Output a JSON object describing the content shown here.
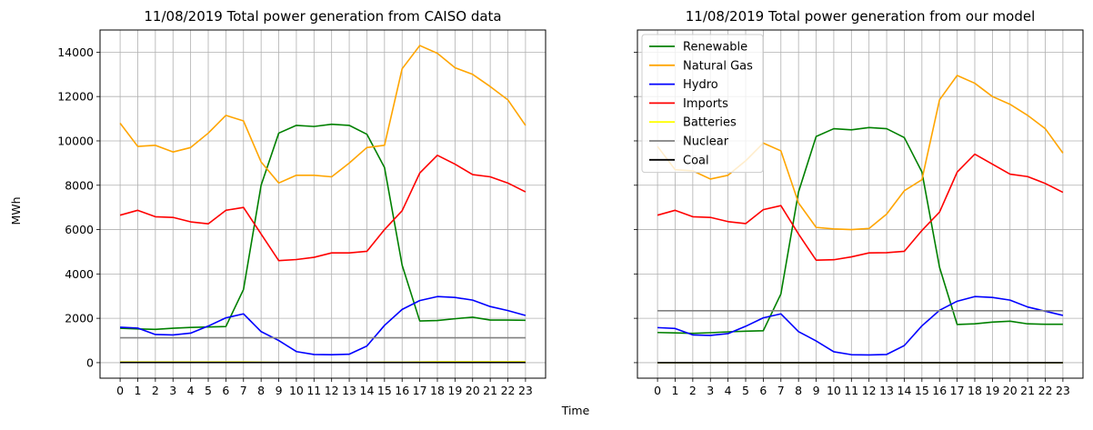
{
  "figure": {
    "xlabel": "Time",
    "ylabel": "MWh"
  },
  "chart_data": [
    {
      "type": "line",
      "title": "11/08/2019 Total power generation from CAISO data",
      "x": [
        0,
        1,
        2,
        3,
        4,
        5,
        6,
        7,
        8,
        9,
        10,
        11,
        12,
        13,
        14,
        15,
        16,
        17,
        18,
        19,
        20,
        21,
        22,
        23
      ],
      "ylim": [
        -700,
        15000
      ],
      "yticks": [
        0,
        2000,
        4000,
        6000,
        8000,
        10000,
        12000,
        14000
      ],
      "grid": true,
      "legend": false,
      "series": [
        {
          "name": "Renewable",
          "color": "#008000",
          "values": [
            1550,
            1520,
            1500,
            1550,
            1590,
            1610,
            1630,
            3300,
            8000,
            10350,
            10700,
            10650,
            10750,
            10700,
            10300,
            8800,
            4400,
            1880,
            1900,
            1980,
            2050,
            1920,
            1920,
            1910
          ]
        },
        {
          "name": "Natural Gas",
          "color": "#ffa500",
          "values": [
            10800,
            9750,
            9800,
            9500,
            9700,
            10350,
            11150,
            10900,
            9050,
            8100,
            8450,
            8450,
            8380,
            9000,
            9700,
            9800,
            13250,
            14300,
            13950,
            13300,
            13000,
            12450,
            11850,
            10700
          ]
        },
        {
          "name": "Hydro",
          "color": "#0000ff",
          "values": [
            1600,
            1560,
            1270,
            1250,
            1330,
            1650,
            2020,
            2200,
            1400,
            1000,
            500,
            370,
            360,
            380,
            750,
            1680,
            2400,
            2800,
            2980,
            2940,
            2820,
            2530,
            2350,
            2130
          ]
        },
        {
          "name": "Imports",
          "color": "#ff0000",
          "values": [
            6650,
            6870,
            6580,
            6550,
            6350,
            6260,
            6870,
            7000,
            5800,
            4600,
            4650,
            4750,
            4950,
            4950,
            5020,
            6000,
            6850,
            8550,
            9350,
            8950,
            8480,
            8380,
            8100,
            7700
          ]
        },
        {
          "name": "Batteries",
          "color": "#ffff00",
          "values": [
            30,
            30,
            30,
            30,
            30,
            30,
            30,
            30,
            20,
            10,
            10,
            10,
            10,
            10,
            10,
            20,
            20,
            30,
            40,
            40,
            40,
            40,
            40,
            40
          ]
        },
        {
          "name": "Nuclear",
          "color": "#808080",
          "values": [
            1120,
            1120,
            1120,
            1120,
            1120,
            1120,
            1120,
            1120,
            1120,
            1120,
            1120,
            1120,
            1120,
            1120,
            1120,
            1120,
            1120,
            1120,
            1120,
            1120,
            1120,
            1120,
            1120,
            1120
          ]
        },
        {
          "name": "Coal",
          "color": "#000000",
          "values": [
            10,
            10,
            10,
            10,
            10,
            10,
            10,
            10,
            10,
            10,
            10,
            10,
            10,
            10,
            10,
            10,
            10,
            10,
            10,
            10,
            10,
            10,
            10,
            10
          ]
        }
      ]
    },
    {
      "type": "line",
      "title": "11/08/2019 Total power generation from our model",
      "x": [
        0,
        1,
        2,
        3,
        4,
        5,
        6,
        7,
        8,
        9,
        10,
        11,
        12,
        13,
        14,
        15,
        16,
        17,
        18,
        19,
        20,
        21,
        22,
        23
      ],
      "ylim": [
        -700,
        15000
      ],
      "yticks": [
        0,
        2000,
        4000,
        6000,
        8000,
        10000,
        12000,
        14000
      ],
      "grid": true,
      "legend": "top-left",
      "series": [
        {
          "name": "Renewable",
          "color": "#008000",
          "values": [
            1360,
            1340,
            1320,
            1350,
            1390,
            1420,
            1440,
            3100,
            7700,
            10200,
            10550,
            10500,
            10600,
            10550,
            10150,
            8600,
            4300,
            1720,
            1750,
            1830,
            1870,
            1750,
            1730,
            1730
          ]
        },
        {
          "name": "Natural Gas",
          "color": "#ffa500",
          "values": [
            9750,
            8700,
            8650,
            8280,
            8450,
            9100,
            9900,
            9550,
            7200,
            6100,
            6030,
            6000,
            6050,
            6700,
            7750,
            8250,
            11850,
            12950,
            12600,
            12000,
            11650,
            11150,
            10550,
            9450
          ]
        },
        {
          "name": "Hydro",
          "color": "#0000ff",
          "values": [
            1580,
            1540,
            1250,
            1230,
            1310,
            1640,
            2020,
            2200,
            1400,
            980,
            490,
            360,
            350,
            370,
            770,
            1660,
            2360,
            2770,
            2980,
            2940,
            2820,
            2510,
            2320,
            2130
          ]
        },
        {
          "name": "Imports",
          "color": "#ff0000",
          "values": [
            6650,
            6870,
            6580,
            6550,
            6360,
            6270,
            6900,
            7080,
            5800,
            4620,
            4640,
            4770,
            4950,
            4960,
            5020,
            5960,
            6790,
            8590,
            9400,
            8950,
            8500,
            8390,
            8080,
            7680
          ]
        },
        {
          "name": "Batteries",
          "color": "#ffff00",
          "values": [
            0,
            0,
            0,
            0,
            0,
            0,
            0,
            0,
            0,
            0,
            0,
            0,
            0,
            0,
            0,
            0,
            0,
            0,
            0,
            0,
            0,
            0,
            0,
            0
          ]
        },
        {
          "name": "Nuclear",
          "color": "#808080",
          "values": [
            2340,
            2340,
            2340,
            2340,
            2340,
            2340,
            2340,
            2340,
            2340,
            2340,
            2340,
            2340,
            2340,
            2340,
            2340,
            2340,
            2340,
            2340,
            2340,
            2340,
            2340,
            2340,
            2340,
            2340
          ]
        },
        {
          "name": "Coal",
          "color": "#000000",
          "values": [
            0,
            0,
            0,
            0,
            0,
            0,
            0,
            0,
            0,
            0,
            0,
            0,
            0,
            0,
            0,
            0,
            0,
            0,
            0,
            0,
            0,
            0,
            0,
            0
          ]
        }
      ]
    }
  ]
}
